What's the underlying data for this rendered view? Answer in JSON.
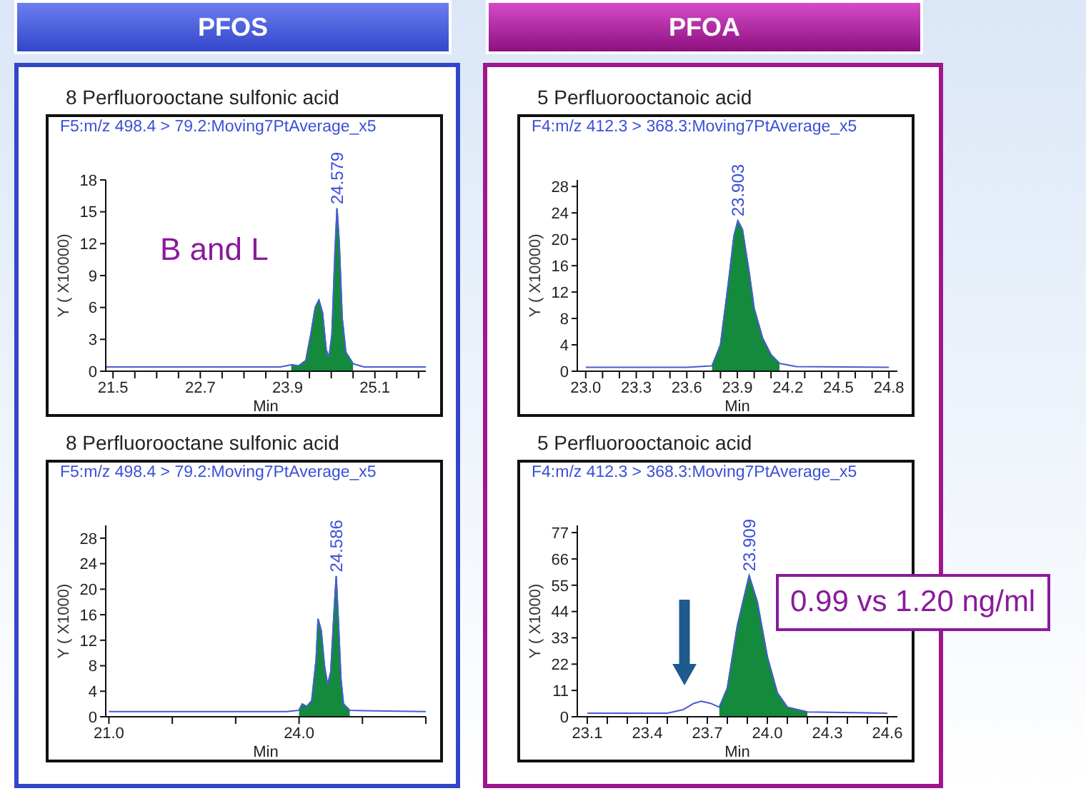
{
  "chart_data": [
    {
      "type": "area",
      "title": "8 Perfluorooctane sulfonic acid",
      "subtitle": "F5:m/z 498.4 > 79.2:Moving7PtAverage_x5",
      "xlabel": "Min",
      "ylabel": "Y ( X10000)",
      "annotations": [
        "PFOS",
        "B and L",
        {
          "text": "24.579",
          "x": 24.579,
          "y": 15.3
        }
      ],
      "x": [
        21.4,
        23.0,
        23.8,
        23.95,
        24.05,
        24.15,
        24.22,
        24.28,
        24.33,
        24.38,
        24.43,
        24.47,
        24.51,
        24.55,
        24.579,
        24.61,
        24.65,
        24.7,
        24.8,
        24.95,
        25.8
      ],
      "series": [
        {
          "type": "area",
          "color": "#138a3c",
          "values": [
            null,
            null,
            null,
            0.6,
            0.5,
            1.0,
            3.5,
            6.0,
            6.7,
            5.5,
            2.0,
            1.3,
            3.5,
            11.0,
            15.3,
            12.0,
            5.0,
            1.8,
            0.7,
            null,
            null
          ]
        },
        {
          "type": "line",
          "color": "#4a5bd4",
          "values": [
            0.4,
            0.4,
            0.4,
            0.6,
            0.5,
            1.0,
            3.5,
            6.0,
            6.7,
            5.5,
            2.0,
            1.3,
            3.5,
            11.0,
            15.3,
            12.0,
            5.0,
            1.8,
            0.7,
            0.4,
            0.4
          ]
        }
      ],
      "xlim": [
        21.4,
        25.8
      ],
      "xticks": [
        {
          "value": 21.5,
          "label": "21.5"
        },
        {
          "value": 21.8,
          "label": null
        },
        {
          "value": 22.1,
          "label": null
        },
        {
          "value": 22.4,
          "label": null
        },
        {
          "value": 22.7,
          "label": "22.7"
        },
        {
          "value": 23.0,
          "label": null
        },
        {
          "value": 23.3,
          "label": null
        },
        {
          "value": 23.6,
          "label": null
        },
        {
          "value": 23.9,
          "label": "23.9"
        },
        {
          "value": 24.2,
          "label": null
        },
        {
          "value": 24.5,
          "label": null
        },
        {
          "value": 24.8,
          "label": null
        },
        {
          "value": 25.1,
          "label": "25.1"
        },
        {
          "value": 25.4,
          "label": null
        },
        {
          "value": 25.7,
          "label": null
        }
      ],
      "ylim": [
        0,
        18
      ],
      "yticks": [
        0,
        3,
        6,
        9,
        12,
        15,
        18
      ]
    },
    {
      "type": "area",
      "title": "5 Perfluorooctanoic acid",
      "subtitle": "F4:m/z 412.3 > 368.3:Moving7PtAverage_x5",
      "xlabel": "Min",
      "ylabel": "Y ( X10000)",
      "annotations": [
        "PFOA",
        {
          "text": "23.903",
          "x": 23.903,
          "y": 22.8
        }
      ],
      "x": [
        23.0,
        23.6,
        23.75,
        23.8,
        23.85,
        23.88,
        23.903,
        23.93,
        23.97,
        24.0,
        24.05,
        24.1,
        24.15,
        24.25,
        24.8
      ],
      "series": [
        {
          "type": "area",
          "color": "#138a3c",
          "values": [
            null,
            null,
            0.8,
            4,
            14,
            20.5,
            22.8,
            21.5,
            15,
            9.5,
            5,
            2.5,
            1.2,
            null,
            null
          ]
        },
        {
          "type": "line",
          "color": "#4a5bd4",
          "values": [
            0.6,
            0.6,
            0.8,
            4,
            14,
            20.5,
            22.8,
            21.5,
            15,
            9.5,
            5,
            2.5,
            1.2,
            0.7,
            0.6
          ]
        }
      ],
      "xlim": [
        22.95,
        24.85
      ],
      "xticks": [
        {
          "value": 23.0,
          "label": "23.0"
        },
        {
          "value": 23.1,
          "label": null
        },
        {
          "value": 23.2,
          "label": null
        },
        {
          "value": 23.3,
          "label": "23.3"
        },
        {
          "value": 23.4,
          "label": null
        },
        {
          "value": 23.5,
          "label": null
        },
        {
          "value": 23.6,
          "label": "23.6"
        },
        {
          "value": 23.7,
          "label": null
        },
        {
          "value": 23.8,
          "label": null
        },
        {
          "value": 23.9,
          "label": "23.9"
        },
        {
          "value": 24.0,
          "label": null
        },
        {
          "value": 24.1,
          "label": null
        },
        {
          "value": 24.2,
          "label": "24.2"
        },
        {
          "value": 24.3,
          "label": null
        },
        {
          "value": 24.4,
          "label": null
        },
        {
          "value": 24.5,
          "label": "24.5"
        },
        {
          "value": 24.6,
          "label": null
        },
        {
          "value": 24.7,
          "label": null
        },
        {
          "value": 24.8,
          "label": "24.8"
        }
      ],
      "ylim": [
        0,
        29
      ],
      "yticks": [
        0,
        4,
        8,
        12,
        16,
        20,
        24,
        28
      ]
    },
    {
      "type": "area",
      "title": "8 Perfluorooctane sulfonic acid",
      "subtitle": "F5:m/z 498.4 > 79.2:Moving7PtAverage_x5",
      "xlabel": "Min",
      "ylabel": "Y ( X1000)",
      "annotations": [
        {
          "text": "24.586",
          "x": 24.586,
          "y": 22
        }
      ],
      "x": [
        21.0,
        23.8,
        24.0,
        24.05,
        24.12,
        24.2,
        24.27,
        24.3,
        24.35,
        24.4,
        24.45,
        24.5,
        24.55,
        24.586,
        24.62,
        24.66,
        24.7,
        24.8,
        26.0
      ],
      "series": [
        {
          "type": "area",
          "color": "#138a3c",
          "values": [
            null,
            null,
            1.0,
            2.0,
            1.6,
            2.5,
            9,
            15.3,
            13.5,
            8,
            5,
            7,
            16,
            22,
            15,
            6,
            2,
            1.0,
            null
          ]
        },
        {
          "type": "line",
          "color": "#4a5bd4",
          "values": [
            0.8,
            0.8,
            1.0,
            2.0,
            1.6,
            2.5,
            9,
            15.3,
            13.5,
            8,
            5,
            7,
            16,
            22,
            15,
            6,
            2,
            1.0,
            0.8
          ]
        }
      ],
      "xlim": [
        20.95,
        26.0
      ],
      "xticks": [
        {
          "value": 21,
          "label": "21.0"
        },
        {
          "value": 22,
          "label": null
        },
        {
          "value": 23,
          "label": null
        },
        {
          "value": 24,
          "label": "24.0"
        },
        {
          "value": 25,
          "label": null
        },
        {
          "value": 26,
          "label": null
        }
      ],
      "ylim": [
        0,
        30
      ],
      "yticks": [
        0,
        4,
        8,
        12,
        16,
        20,
        24,
        28
      ]
    },
    {
      "type": "area",
      "title": "5 Perfluorooctanoic acid",
      "subtitle": "F4:m/z 412.3 > 368.3:Moving7PtAverage_x5",
      "xlabel": "Min",
      "ylabel": "Y ( X1000)",
      "annotations": [
        {
          "text": "23.909",
          "x": 23.909,
          "y": 59
        },
        "0.99 vs 1.20 ng/ml"
      ],
      "x": [
        23.1,
        23.5,
        23.58,
        23.63,
        23.67,
        23.72,
        23.76,
        23.8,
        23.85,
        23.909,
        23.95,
        24.0,
        24.05,
        24.1,
        24.2,
        24.6
      ],
      "series": [
        {
          "type": "area",
          "color": "#138a3c",
          "values": [
            null,
            null,
            null,
            null,
            null,
            null,
            4,
            12,
            38,
            59,
            48,
            25,
            10,
            4,
            2,
            null
          ]
        },
        {
          "type": "line",
          "color": "#4a5bd4",
          "values": [
            1.5,
            1.5,
            3,
            5.5,
            6.5,
            5.5,
            4,
            12,
            38,
            59,
            48,
            25,
            10,
            4,
            2,
            1.5
          ]
        }
      ],
      "xlim": [
        23.05,
        24.65
      ],
      "xticks": [
        {
          "value": 23.1,
          "label": "23.1"
        },
        {
          "value": 23.2,
          "label": null
        },
        {
          "value": 23.3,
          "label": null
        },
        {
          "value": 23.4,
          "label": "23.4"
        },
        {
          "value": 23.5,
          "label": null
        },
        {
          "value": 23.6,
          "label": null
        },
        {
          "value": 23.7,
          "label": "23.7"
        },
        {
          "value": 23.8,
          "label": null
        },
        {
          "value": 23.9,
          "label": null
        },
        {
          "value": 24.0,
          "label": "24.0"
        },
        {
          "value": 24.1,
          "label": null
        },
        {
          "value": 24.2,
          "label": null
        },
        {
          "value": 24.3,
          "label": "24.3"
        },
        {
          "value": 24.4,
          "label": null
        },
        {
          "value": 24.5,
          "label": null
        },
        {
          "value": 24.6,
          "label": "24.6"
        }
      ],
      "ylim": [
        0,
        80
      ],
      "yticks": [
        0,
        11,
        22,
        33,
        44,
        55,
        66,
        77
      ]
    }
  ]
}
